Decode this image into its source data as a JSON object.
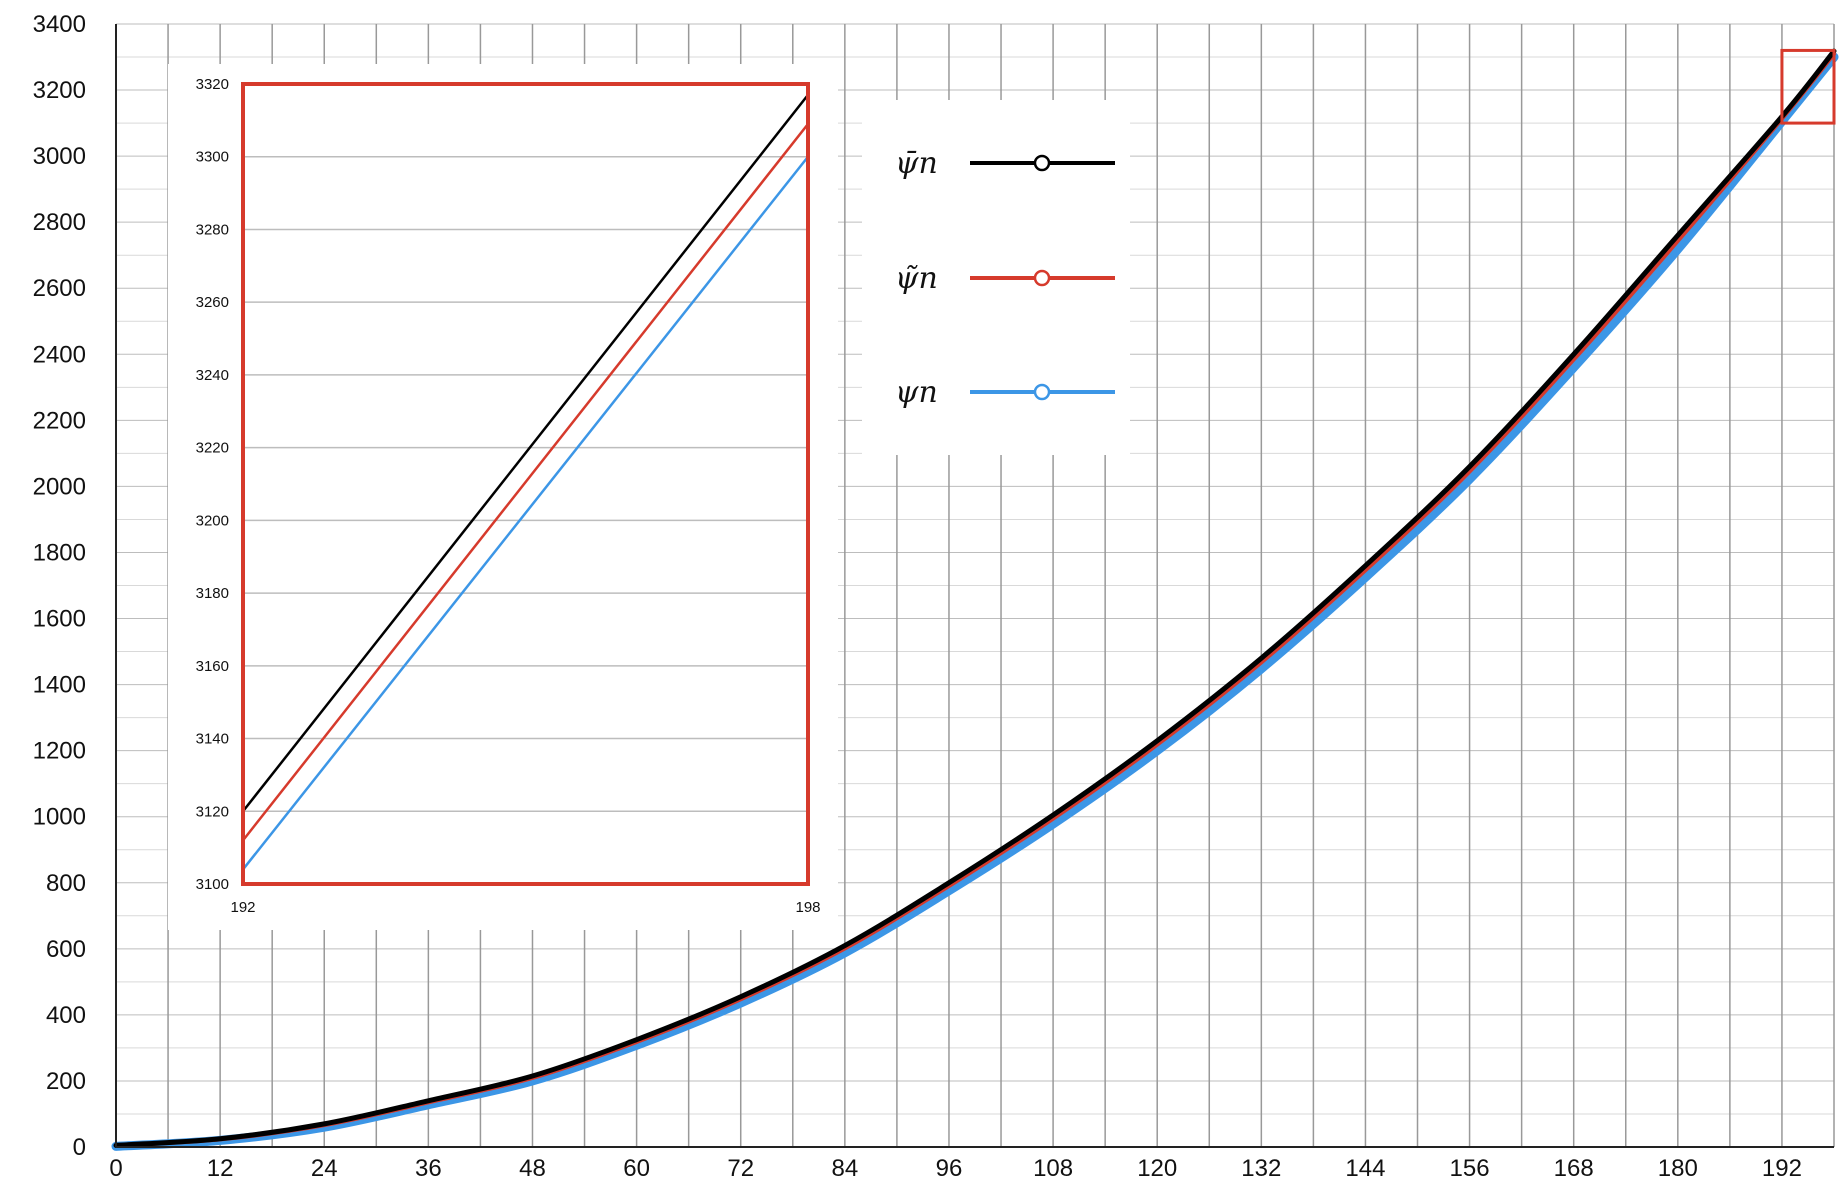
{
  "chart_data": [
    {
      "type": "line",
      "title": "",
      "xlabel": "",
      "ylabel": "",
      "xlim": [
        0,
        198
      ],
      "ylim": [
        0,
        3400
      ],
      "x_ticks": [
        "0",
        "12",
        "24",
        "36",
        "48",
        "60",
        "72",
        "84",
        "96",
        "108",
        "120",
        "132",
        "144",
        "156",
        "168",
        "180",
        "192"
      ],
      "y_ticks": [
        "0",
        "200",
        "400",
        "600",
        "800",
        "1000",
        "1200",
        "1400",
        "1600",
        "1800",
        "2000",
        "2200",
        "2400",
        "2600",
        "2800",
        "3000",
        "3200",
        "3400"
      ],
      "grid": true,
      "x_grid_step": 6,
      "y_grid_step": 100,
      "legend_position": "top-center",
      "highlight_region": {
        "x": [
          192,
          198
        ],
        "y": [
          3100,
          3320
        ]
      },
      "series": [
        {
          "name": "ψ̄n",
          "color": "#000000",
          "points": [
            [
              0,
              5
            ],
            [
              12,
              25
            ],
            [
              24,
              70
            ],
            [
              36,
              140
            ],
            [
              48,
              215
            ],
            [
              60,
              325
            ],
            [
              72,
              455
            ],
            [
              84,
              610
            ],
            [
              96,
              800
            ],
            [
              108,
              1005
            ],
            [
              120,
              1230
            ],
            [
              132,
              1480
            ],
            [
              144,
              1760
            ],
            [
              156,
              2060
            ],
            [
              168,
              2400
            ],
            [
              180,
              2760
            ],
            [
              192,
              3120
            ],
            [
              198,
              3318
            ]
          ]
        },
        {
          "name": "ψ̃n",
          "color": "#d63a2c",
          "points": [
            [
              0,
              4
            ],
            [
              12,
              23
            ],
            [
              24,
              66
            ],
            [
              36,
              135
            ],
            [
              48,
              209
            ],
            [
              60,
              318
            ],
            [
              72,
              447
            ],
            [
              84,
              601
            ],
            [
              96,
              790
            ],
            [
              108,
              994
            ],
            [
              120,
              1218
            ],
            [
              132,
              1467
            ],
            [
              144,
              1746
            ],
            [
              156,
              2045
            ],
            [
              168,
              2384
            ],
            [
              180,
              2743
            ],
            [
              192,
              3113
            ],
            [
              198,
              3309
            ]
          ]
        },
        {
          "name": "ψn",
          "color": "#3c96e6",
          "points": [
            [
              0,
              2
            ],
            [
              12,
              20
            ],
            [
              24,
              60
            ],
            [
              36,
              128
            ],
            [
              48,
              200
            ],
            [
              60,
              308
            ],
            [
              72,
              436
            ],
            [
              84,
              588
            ],
            [
              96,
              776
            ],
            [
              108,
              978
            ],
            [
              120,
              1200
            ],
            [
              132,
              1448
            ],
            [
              144,
              1725
            ],
            [
              156,
              2022
            ],
            [
              168,
              2360
            ],
            [
              180,
              2718
            ],
            [
              192,
              3105
            ],
            [
              198,
              3300
            ]
          ]
        }
      ]
    },
    {
      "type": "line",
      "title": "",
      "xlabel": "",
      "ylabel": "",
      "xlim": [
        192,
        198
      ],
      "ylim": [
        3100,
        3320
      ],
      "x_ticks": [
        "192",
        "198"
      ],
      "y_ticks": [
        "3100",
        "3120",
        "3140",
        "3160",
        "3180",
        "3200",
        "3220",
        "3240",
        "3260",
        "3280",
        "3300",
        "3320"
      ],
      "grid": true,
      "series": [
        {
          "name": "ψ̄n",
          "color": "#000000",
          "points": [
            [
              192,
              3120
            ],
            [
              198,
              3317
            ]
          ]
        },
        {
          "name": "ψ̃n",
          "color": "#d63a2c",
          "points": [
            [
              192,
              3112
            ],
            [
              198,
              3309
            ]
          ]
        },
        {
          "name": "ψn",
          "color": "#3c96e6",
          "points": [
            [
              192,
              3104
            ],
            [
              198,
              3300
            ]
          ]
        }
      ]
    }
  ],
  "legend": {
    "entries": [
      {
        "label": "ψ̄n",
        "color": "#000000"
      },
      {
        "label": "ψ̃n",
        "color": "#d63a2c"
      },
      {
        "label": "ψn",
        "color": "#3c96e6"
      }
    ]
  },
  "colors": {
    "highlight_box": "#d63a2c",
    "grid": "#999999",
    "minor_grid": "#d9d9d9"
  }
}
